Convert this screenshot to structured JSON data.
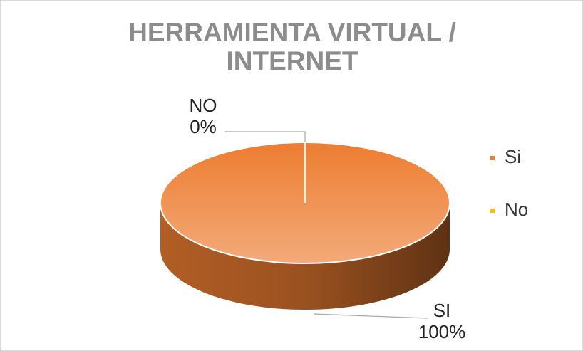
{
  "chart_data": {
    "type": "pie3d",
    "title": "HERRAMIENTA VIRTUAL / INTERNET",
    "categories": [
      "Si",
      "No"
    ],
    "values": [
      100,
      0
    ],
    "label_names": [
      "SI",
      "NO"
    ],
    "value_labels": [
      "100%",
      "0%"
    ],
    "colors": [
      "#ed7d31",
      "#ffc000"
    ],
    "legend": "right"
  }
}
